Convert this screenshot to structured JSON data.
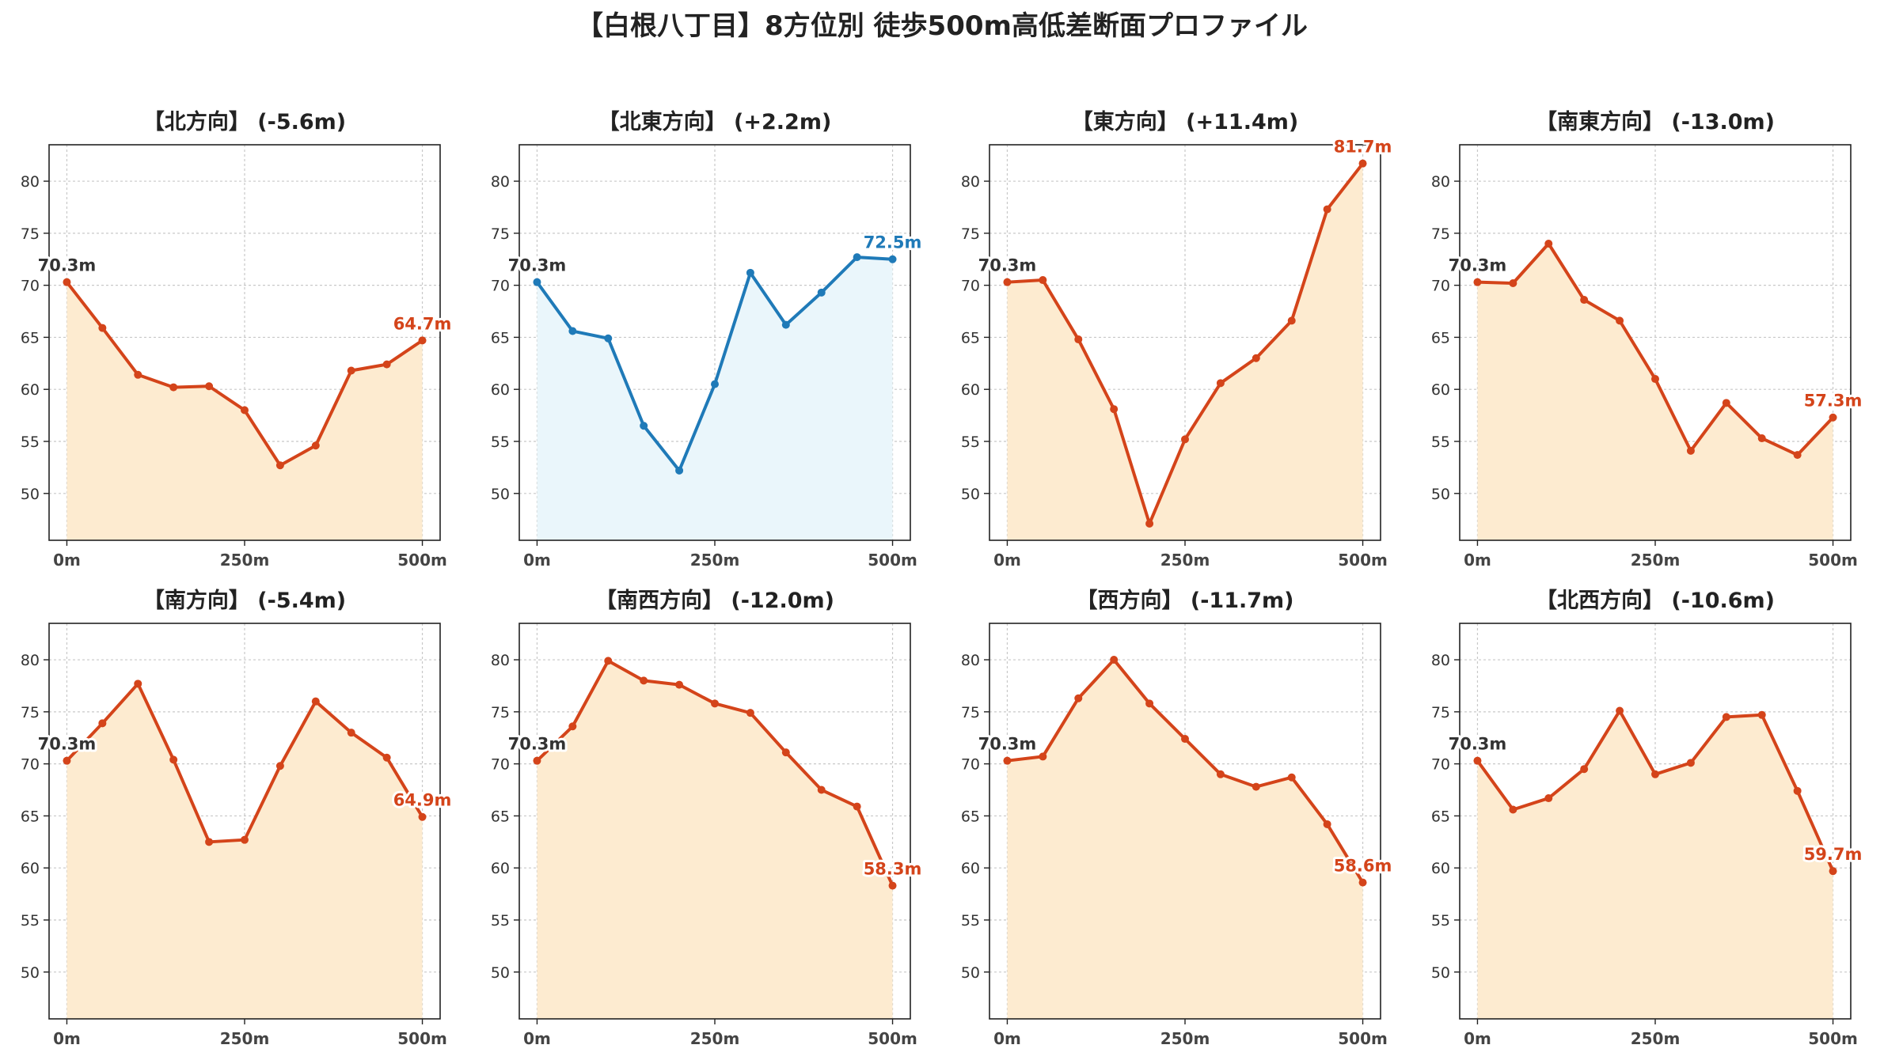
{
  "figure": {
    "title": "【白根八丁目】8方位別 徒歩500m高低差断面プロファイル"
  },
  "colors": {
    "down_line": "#d4441a",
    "down_fill": "#fdebd0",
    "up_line": "#1f7ab8",
    "up_fill": "#eaf6fb",
    "start_label": "#333333"
  },
  "chart_data": [
    {
      "type": "line",
      "title": "【北方向】 (-5.6m)",
      "x": [
        0,
        50,
        100,
        150,
        200,
        250,
        300,
        350,
        400,
        450,
        500
      ],
      "x_tick_labels": [
        "0m",
        "250m",
        "500m"
      ],
      "y_ticks": [
        50,
        55,
        60,
        65,
        70,
        75,
        80
      ],
      "ylim": [
        45.5,
        83.5
      ],
      "trend": "down",
      "series": [
        {
          "values": [
            70.3,
            65.9,
            61.4,
            60.2,
            60.3,
            58.0,
            52.7,
            54.6,
            61.8,
            62.4,
            64.7
          ]
        }
      ],
      "start_label": "70.3m",
      "end_label": "64.7m",
      "grid": true
    },
    {
      "type": "line",
      "title": "【北東方向】 (+2.2m)",
      "x": [
        0,
        50,
        100,
        150,
        200,
        250,
        300,
        350,
        400,
        450,
        500
      ],
      "x_tick_labels": [
        "0m",
        "250m",
        "500m"
      ],
      "y_ticks": [
        50,
        55,
        60,
        65,
        70,
        75,
        80
      ],
      "ylim": [
        45.5,
        83.5
      ],
      "trend": "up",
      "series": [
        {
          "values": [
            70.3,
            65.6,
            64.9,
            56.5,
            52.2,
            60.5,
            71.2,
            66.2,
            69.3,
            72.7,
            72.5
          ]
        }
      ],
      "start_label": "70.3m",
      "end_label": "72.5m",
      "grid": true
    },
    {
      "type": "line",
      "title": "【東方向】 (+11.4m)",
      "x": [
        0,
        50,
        100,
        150,
        200,
        250,
        300,
        350,
        400,
        450,
        500
      ],
      "x_tick_labels": [
        "0m",
        "250m",
        "500m"
      ],
      "y_ticks": [
        50,
        55,
        60,
        65,
        70,
        75,
        80
      ],
      "ylim": [
        45.5,
        83.5
      ],
      "trend": "up_red",
      "series": [
        {
          "values": [
            70.3,
            70.5,
            64.8,
            58.1,
            47.1,
            55.2,
            60.6,
            63.0,
            66.6,
            77.3,
            81.7
          ]
        }
      ],
      "start_label": "70.3m",
      "end_label": "81.7m",
      "grid": true
    },
    {
      "type": "line",
      "title": "【南東方向】 (-13.0m)",
      "x": [
        0,
        50,
        100,
        150,
        200,
        250,
        300,
        350,
        400,
        450,
        500
      ],
      "x_tick_labels": [
        "0m",
        "250m",
        "500m"
      ],
      "y_ticks": [
        50,
        55,
        60,
        65,
        70,
        75,
        80
      ],
      "ylim": [
        45.5,
        83.5
      ],
      "trend": "down",
      "series": [
        {
          "values": [
            70.3,
            70.2,
            74.0,
            68.6,
            66.6,
            61.0,
            54.1,
            58.7,
            55.3,
            53.7,
            57.3
          ]
        }
      ],
      "start_label": "70.3m",
      "end_label": "57.3m",
      "grid": true
    },
    {
      "type": "line",
      "title": "【南方向】 (-5.4m)",
      "x": [
        0,
        50,
        100,
        150,
        200,
        250,
        300,
        350,
        400,
        450,
        500
      ],
      "x_tick_labels": [
        "0m",
        "250m",
        "500m"
      ],
      "y_ticks": [
        50,
        55,
        60,
        65,
        70,
        75,
        80
      ],
      "ylim": [
        45.5,
        83.5
      ],
      "trend": "down",
      "series": [
        {
          "values": [
            70.3,
            73.9,
            77.7,
            70.4,
            62.5,
            62.7,
            69.8,
            76.0,
            73.0,
            70.6,
            64.9
          ]
        }
      ],
      "start_label": "70.3m",
      "end_label": "64.9m",
      "grid": true
    },
    {
      "type": "line",
      "title": "【南西方向】 (-12.0m)",
      "x": [
        0,
        50,
        100,
        150,
        200,
        250,
        300,
        350,
        400,
        450,
        500
      ],
      "x_tick_labels": [
        "0m",
        "250m",
        "500m"
      ],
      "y_ticks": [
        50,
        55,
        60,
        65,
        70,
        75,
        80
      ],
      "ylim": [
        45.5,
        83.5
      ],
      "trend": "down",
      "series": [
        {
          "values": [
            70.3,
            73.6,
            79.9,
            78.0,
            77.6,
            75.8,
            74.9,
            71.1,
            67.5,
            65.9,
            58.3
          ]
        }
      ],
      "start_label": "70.3m",
      "end_label": "58.3m",
      "grid": true
    },
    {
      "type": "line",
      "title": "【西方向】 (-11.7m)",
      "x": [
        0,
        50,
        100,
        150,
        200,
        250,
        300,
        350,
        400,
        450,
        500
      ],
      "x_tick_labels": [
        "0m",
        "250m",
        "500m"
      ],
      "y_ticks": [
        50,
        55,
        60,
        65,
        70,
        75,
        80
      ],
      "ylim": [
        45.5,
        83.5
      ],
      "trend": "down",
      "series": [
        {
          "values": [
            70.3,
            70.7,
            76.3,
            80.0,
            75.8,
            72.4,
            69.0,
            67.8,
            68.7,
            64.2,
            58.6
          ]
        }
      ],
      "start_label": "70.3m",
      "end_label": "58.6m",
      "grid": true
    },
    {
      "type": "line",
      "title": "【北西方向】 (-10.6m)",
      "x": [
        0,
        50,
        100,
        150,
        200,
        250,
        300,
        350,
        400,
        450,
        500
      ],
      "x_tick_labels": [
        "0m",
        "250m",
        "500m"
      ],
      "y_ticks": [
        50,
        55,
        60,
        65,
        70,
        75,
        80
      ],
      "ylim": [
        45.5,
        83.5
      ],
      "trend": "down",
      "series": [
        {
          "values": [
            70.3,
            65.6,
            66.7,
            69.5,
            75.1,
            69.0,
            70.1,
            74.5,
            74.7,
            67.4,
            59.7
          ]
        }
      ],
      "start_label": "70.3m",
      "end_label": "59.7m",
      "grid": true
    }
  ]
}
